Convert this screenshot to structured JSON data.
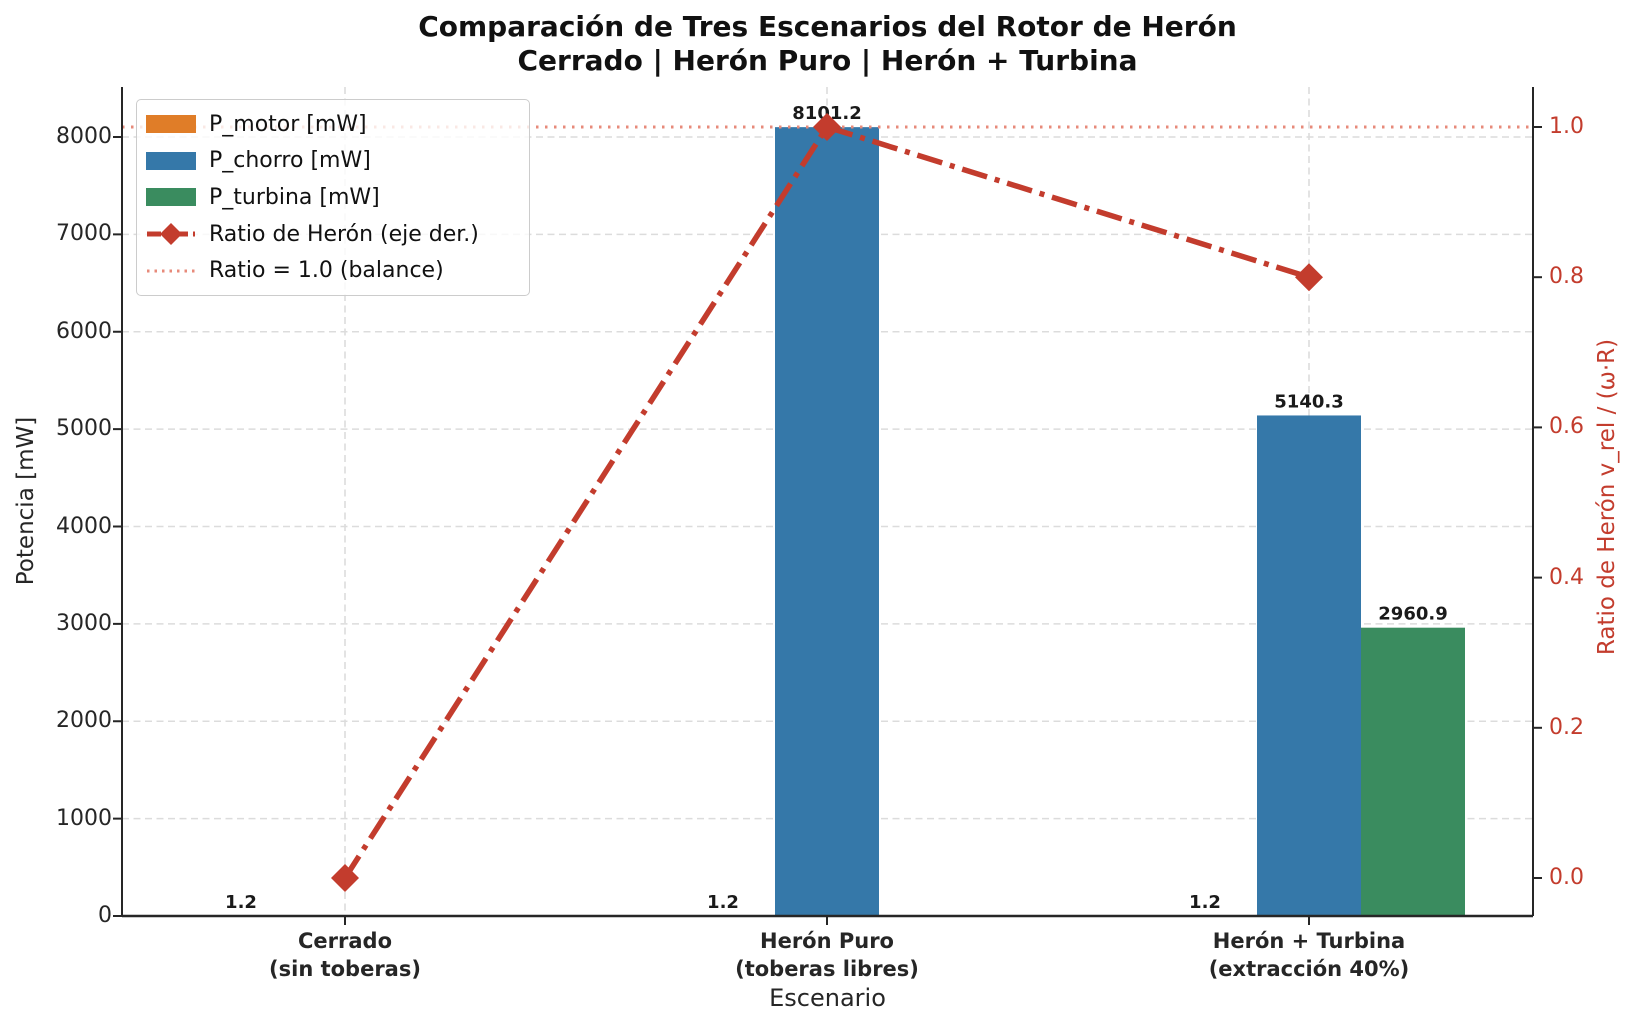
{
  "title": {
    "line1": "Comparación de Tres Escenarios del Rotor de Herón",
    "line2": "Cerrado | Herón Puro | Herón + Turbina"
  },
  "chart_data": {
    "type": "bar",
    "categories": [
      {
        "line1": "Cerrado",
        "line2": "(sin toberas)"
      },
      {
        "line1": "Herón Puro",
        "line2": "(toberas libres)"
      },
      {
        "line1": "Herón + Turbina",
        "line2": "(extracción 40%)"
      }
    ],
    "bar_series": [
      {
        "name": "P_motor [mW]",
        "color": "#e07d28",
        "values": [
          1.2,
          1.2,
          1.2
        ]
      },
      {
        "name": "P_chorro [mW]",
        "color": "#3578a9",
        "values": [
          0,
          8101.2,
          5140.3
        ]
      },
      {
        "name": "P_turbina [mW]",
        "color": "#3a8c5f",
        "values": [
          0,
          0,
          2960.9
        ]
      }
    ],
    "bar_value_labels": [
      "1.2",
      "8101.2",
      "5140.3",
      "2960.9"
    ],
    "line_series": {
      "name": "Ratio de Herón (eje der.)",
      "color": "#c33c2d",
      "axis": "right",
      "values": [
        0.0,
        1.0,
        0.8
      ],
      "style": "dashdot-diamond"
    },
    "reference_line": {
      "name": "Ratio = 1.0 (balance)",
      "color": "#e78a7a",
      "value": 1.0,
      "style": "dotted"
    },
    "x_axis": {
      "label": "Escenario"
    },
    "left_axis": {
      "label": "Potencia  [mW]",
      "ticks": [
        0,
        1000,
        2000,
        3000,
        4000,
        5000,
        6000,
        7000,
        8000
      ],
      "range": [
        0,
        8510
      ]
    },
    "right_axis": {
      "label": "Ratio de Herón  v_rel / (ω·R)",
      "ticks": [
        "0.0",
        "0.2",
        "0.4",
        "0.6",
        "0.8",
        "1.0"
      ],
      "range": [
        -0.05,
        1.05
      ],
      "color": "#c33c2d"
    },
    "grid": true,
    "legend_position": "upper-left"
  },
  "colors": {
    "grid": "#dcdcdc",
    "spine": "#262626",
    "text": "#262626",
    "bar_label": "#1a1a1a"
  }
}
